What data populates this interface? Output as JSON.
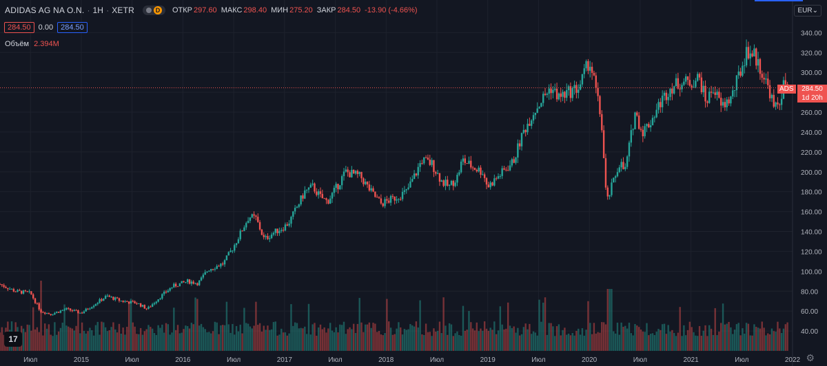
{
  "header": {
    "symbol": "ADIDAS AG NA O.N.",
    "interval": "1H",
    "exchange": "XETR",
    "badge_letter": "D",
    "ohlc": [
      {
        "label": "ОТКР",
        "value": "297.60"
      },
      {
        "label": "МАКС",
        "value": "298.40"
      },
      {
        "label": "МИН",
        "value": "275.20"
      },
      {
        "label": "ЗАКР",
        "value": "284.50"
      }
    ],
    "change": "-13.90 (-4.66%)"
  },
  "price_boxes": {
    "bid": "284.50",
    "spread": "0.00",
    "ask": "284.50"
  },
  "volume": {
    "label": "Объём",
    "value": "2.394M"
  },
  "currency_button": "EUR",
  "last_price": {
    "symbol": "ADS",
    "price": "284.50",
    "countdown": "1d 20h"
  },
  "colors": {
    "background": "#131722",
    "up": "#26a69a",
    "down": "#ef5350",
    "grid": "#1e222d",
    "text": "#b2b5be"
  },
  "icons": {
    "logo": "tradingview-logo-icon",
    "settings": "gear-icon"
  },
  "chart_data": {
    "type": "candlestick",
    "title": "ADIDAS AG NA O.N.",
    "y_axis": {
      "min": 20,
      "max": 352,
      "ticks": [
        40,
        60,
        80,
        100,
        120,
        140,
        160,
        180,
        200,
        220,
        240,
        260,
        280,
        300,
        320,
        340
      ]
    },
    "x_axis": {
      "start": 2014.2,
      "end": 2022.0,
      "ticks": [
        {
          "t": 2014.5,
          "label": "Июл"
        },
        {
          "t": 2015.0,
          "label": "2015"
        },
        {
          "t": 2015.5,
          "label": "Июл"
        },
        {
          "t": 2016.0,
          "label": "2016"
        },
        {
          "t": 2016.5,
          "label": "Июл"
        },
        {
          "t": 2017.0,
          "label": "2017"
        },
        {
          "t": 2017.5,
          "label": "Июл"
        },
        {
          "t": 2018.0,
          "label": "2018"
        },
        {
          "t": 2018.5,
          "label": "Июл"
        },
        {
          "t": 2019.0,
          "label": "2019"
        },
        {
          "t": 2019.5,
          "label": "Июл"
        },
        {
          "t": 2020.0,
          "label": "2020"
        },
        {
          "t": 2020.5,
          "label": "Июл"
        },
        {
          "t": 2021.0,
          "label": "2021"
        },
        {
          "t": 2021.5,
          "label": "Июл"
        },
        {
          "t": 2022.0,
          "label": "2022"
        }
      ]
    },
    "price_series": [
      [
        2014.2,
        87
      ],
      [
        2014.35,
        80
      ],
      [
        2014.5,
        78
      ],
      [
        2014.6,
        60
      ],
      [
        2014.7,
        57
      ],
      [
        2014.85,
        62
      ],
      [
        2015.0,
        58
      ],
      [
        2015.1,
        65
      ],
      [
        2015.25,
        75
      ],
      [
        2015.4,
        70
      ],
      [
        2015.55,
        68
      ],
      [
        2015.65,
        62
      ],
      [
        2015.75,
        72
      ],
      [
        2015.9,
        85
      ],
      [
        2016.05,
        90
      ],
      [
        2016.15,
        88
      ],
      [
        2016.25,
        102
      ],
      [
        2016.4,
        108
      ],
      [
        2016.5,
        125
      ],
      [
        2016.6,
        145
      ],
      [
        2016.65,
        155
      ],
      [
        2016.72,
        153
      ],
      [
        2016.8,
        132
      ],
      [
        2016.88,
        138
      ],
      [
        2017.0,
        145
      ],
      [
        2017.05,
        150
      ],
      [
        2017.2,
        180
      ],
      [
        2017.28,
        185
      ],
      [
        2017.35,
        175
      ],
      [
        2017.42,
        170
      ],
      [
        2017.5,
        182
      ],
      [
        2017.6,
        200
      ],
      [
        2017.75,
        195
      ],
      [
        2017.85,
        180
      ],
      [
        2017.95,
        168
      ],
      [
        2018.05,
        172
      ],
      [
        2018.2,
        180
      ],
      [
        2018.3,
        200
      ],
      [
        2018.35,
        212
      ],
      [
        2018.45,
        208
      ],
      [
        2018.55,
        190
      ],
      [
        2018.62,
        185
      ],
      [
        2018.7,
        195
      ],
      [
        2018.75,
        212
      ],
      [
        2018.85,
        205
      ],
      [
        2018.95,
        200
      ],
      [
        2019.0,
        185
      ],
      [
        2019.15,
        200
      ],
      [
        2019.25,
        210
      ],
      [
        2019.35,
        240
      ],
      [
        2019.45,
        260
      ],
      [
        2019.55,
        275
      ],
      [
        2019.62,
        285
      ],
      [
        2019.7,
        275
      ],
      [
        2019.8,
        280
      ],
      [
        2019.9,
        285
      ],
      [
        2020.0,
        312
      ],
      [
        2020.05,
        290
      ],
      [
        2020.12,
        250
      ],
      [
        2020.17,
        168
      ],
      [
        2020.22,
        185
      ],
      [
        2020.3,
        210
      ],
      [
        2020.35,
        200
      ],
      [
        2020.45,
        260
      ],
      [
        2020.52,
        240
      ],
      [
        2020.6,
        250
      ],
      [
        2020.7,
        270
      ],
      [
        2020.8,
        285
      ],
      [
        2020.9,
        290
      ],
      [
        2021.0,
        290
      ],
      [
        2021.08,
        295
      ],
      [
        2021.15,
        270
      ],
      [
        2021.22,
        285
      ],
      [
        2021.3,
        265
      ],
      [
        2021.4,
        275
      ],
      [
        2021.5,
        305
      ],
      [
        2021.55,
        322
      ],
      [
        2021.62,
        318
      ],
      [
        2021.7,
        300
      ],
      [
        2021.78,
        280
      ],
      [
        2021.82,
        262
      ],
      [
        2021.87,
        270
      ],
      [
        2021.92,
        290
      ],
      [
        2021.95,
        284.5
      ]
    ],
    "volume_axis_max_million": 10,
    "volume_note": "Volume bars drawn along bottom of price pane; peaks near 2014.6 and 2020.2"
  }
}
